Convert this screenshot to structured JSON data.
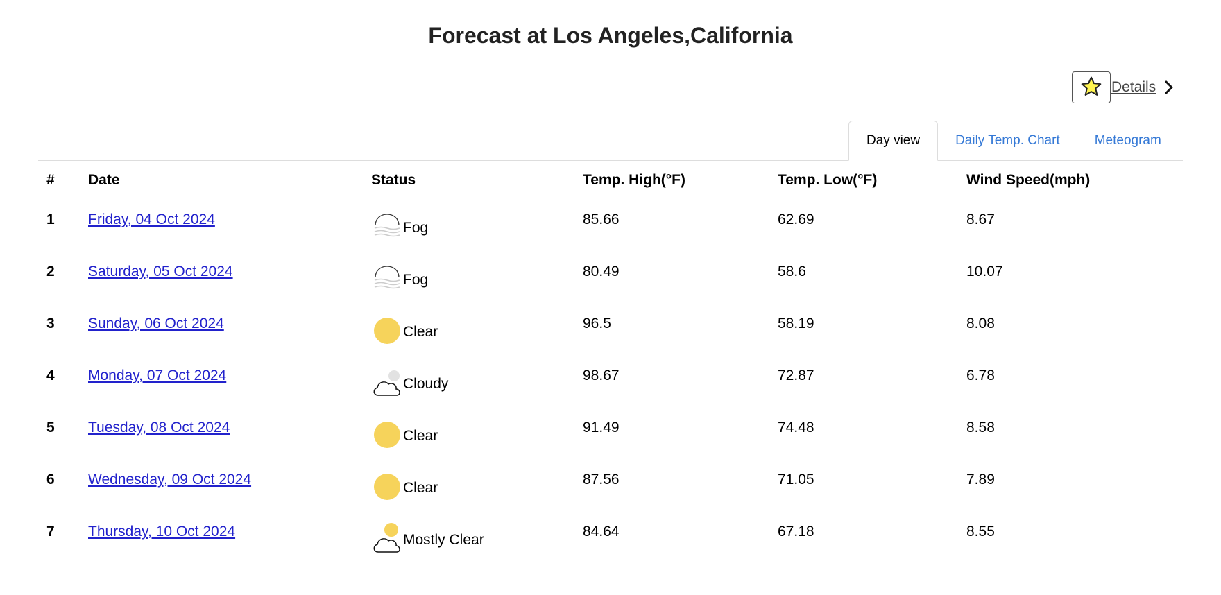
{
  "title": "Forecast at Los Angeles,California",
  "favorite": {
    "icon": "star-icon",
    "color": "#fff44f"
  },
  "details_label": "Details",
  "tabs": [
    {
      "label": "Day view",
      "active": true
    },
    {
      "label": "Daily Temp. Chart",
      "active": false
    },
    {
      "label": "Meteogram",
      "active": false
    }
  ],
  "table": {
    "headers": [
      "#",
      "Date",
      "Status",
      "Temp. High(°F)",
      "Temp. Low(°F)",
      "Wind Speed(mph)"
    ],
    "rows": [
      {
        "num": "1",
        "date": "Friday, 04 Oct 2024",
        "status": "Fog",
        "icon": "fog-icon",
        "high": "85.66",
        "low": "62.69",
        "wind": "8.67"
      },
      {
        "num": "2",
        "date": "Saturday, 05 Oct 2024",
        "status": "Fog",
        "icon": "fog-icon",
        "high": "80.49",
        "low": "58.6",
        "wind": "10.07"
      },
      {
        "num": "3",
        "date": "Sunday, 06 Oct 2024",
        "status": "Clear",
        "icon": "sun-icon",
        "high": "96.5",
        "low": "58.19",
        "wind": "8.08"
      },
      {
        "num": "4",
        "date": "Monday, 07 Oct 2024",
        "status": "Cloudy",
        "icon": "cloud-icon",
        "high": "98.67",
        "low": "72.87",
        "wind": "6.78"
      },
      {
        "num": "5",
        "date": "Tuesday, 08 Oct 2024",
        "status": "Clear",
        "icon": "sun-icon",
        "high": "91.49",
        "low": "74.48",
        "wind": "8.58"
      },
      {
        "num": "6",
        "date": "Wednesday, 09 Oct 2024",
        "status": "Clear",
        "icon": "sun-icon",
        "high": "87.56",
        "low": "71.05",
        "wind": "7.89"
      },
      {
        "num": "7",
        "date": "Thursday, 10 Oct 2024",
        "status": "Mostly Clear",
        "icon": "sun-cloud-icon",
        "high": "84.64",
        "low": "67.18",
        "wind": "8.55"
      }
    ]
  },
  "colors": {
    "sun": "#f6d35b",
    "link": "#2222cc",
    "tab_link": "#3579d6",
    "border": "#dddddd"
  }
}
